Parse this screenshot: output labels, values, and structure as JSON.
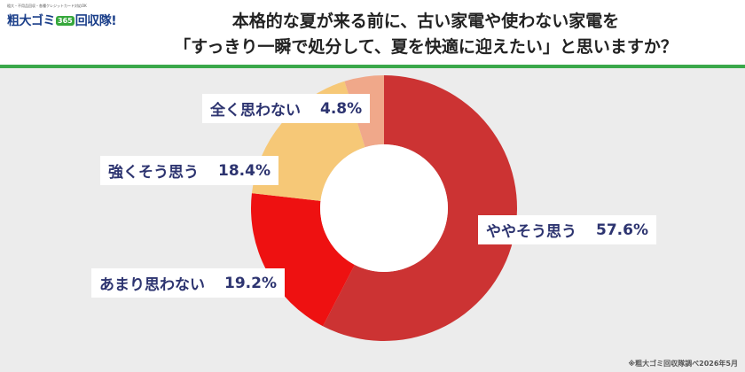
{
  "logo": {
    "tagline": "粗大・不用品回収・各種クレジットカード対応OK",
    "name_left": "粗大ゴミ",
    "badge": "365",
    "name_right": "回収隊!"
  },
  "title_lines": [
    "本格的な夏が来る前に、古い家電や使わない家電を",
    "「すっきり一瞬で処分して、夏を快適に迎えたい」と思いますか？"
  ],
  "source": "※粗大ゴミ回収隊調べ2026年5月",
  "colors": {
    "accent_green": "#3aa84a",
    "label_text": "#2d3470"
  },
  "chart_data": {
    "type": "pie",
    "donut": true,
    "unit": "%",
    "slices": [
      {
        "label": "ややそう思う",
        "value": 57.6,
        "value_label": "57.6%",
        "color": "#cc3333"
      },
      {
        "label": "あまり思わない",
        "value": 19.2,
        "value_label": "19.2%",
        "color": "#ee1111"
      },
      {
        "label": "強くそう思う",
        "value": 18.4,
        "value_label": "18.4%",
        "color": "#f6c877"
      },
      {
        "label": "全く思わない",
        "value": 4.8,
        "value_label": "4.8%",
        "color": "#f0a88a"
      }
    ]
  }
}
